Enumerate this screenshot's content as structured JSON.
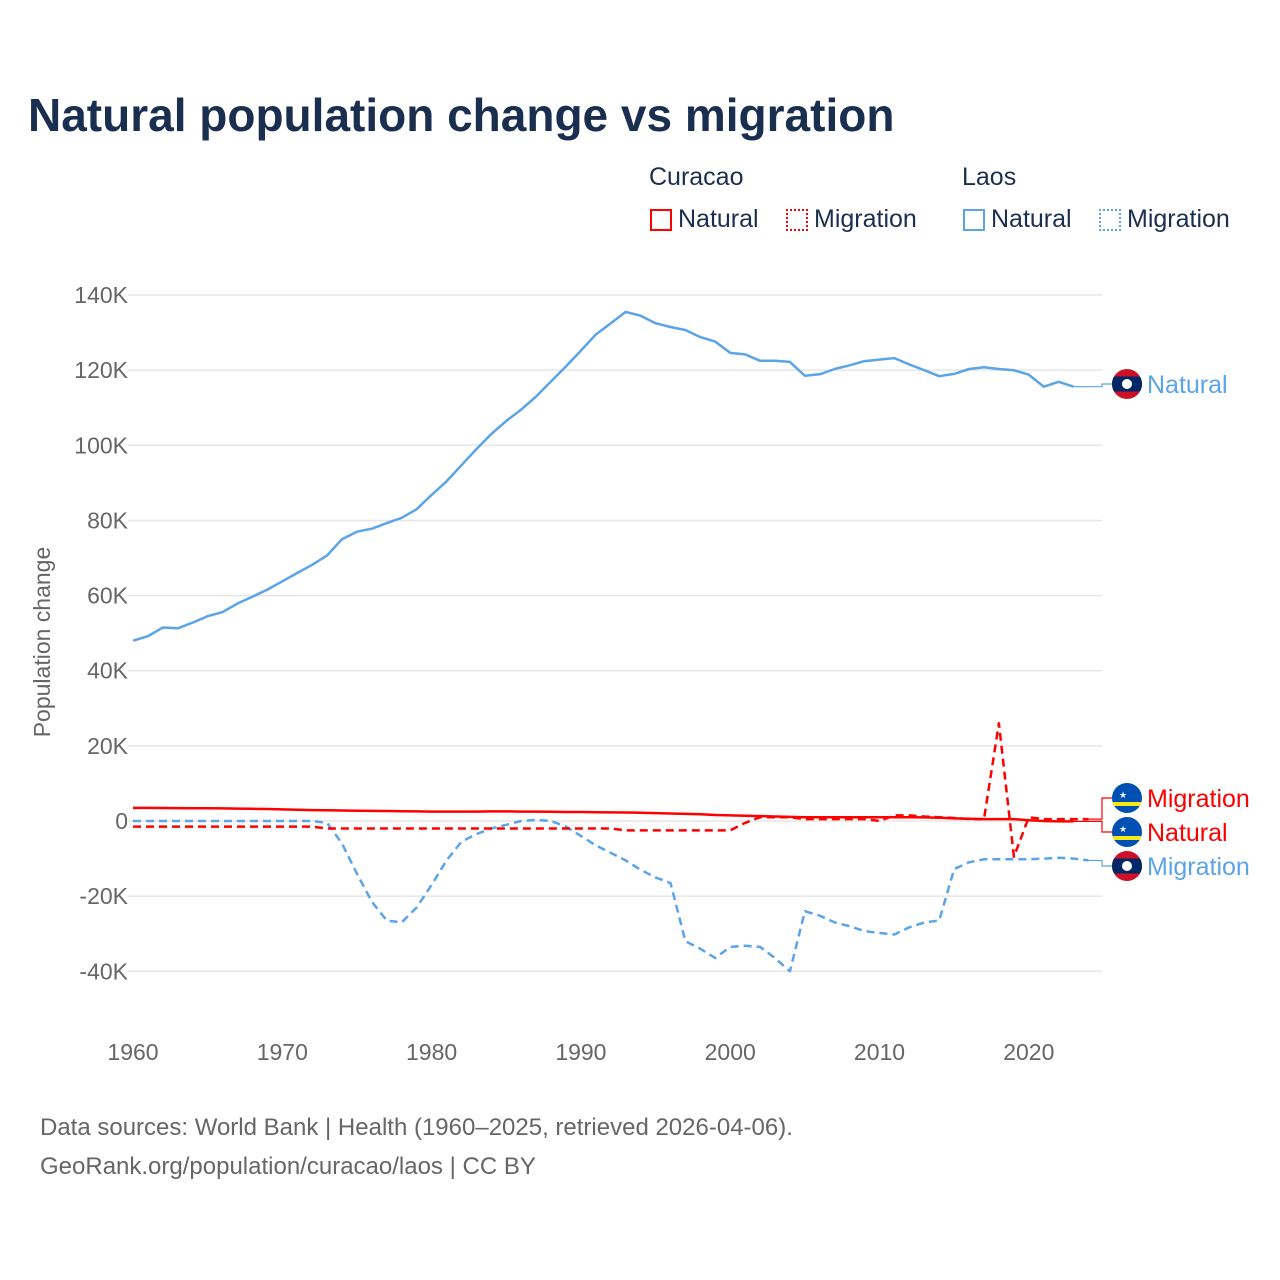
{
  "title": "Natural population change vs migration",
  "legend": {
    "groups": [
      {
        "name": "Curacao",
        "items": [
          "Natural",
          "Migration"
        ],
        "color": "#ff0000"
      },
      {
        "name": "Laos",
        "items": [
          "Natural",
          "Migration"
        ],
        "color": "#5ba4e8"
      }
    ]
  },
  "footer": {
    "line1": "Data sources: World Bank | Health (1960–2025, retrieved 2026-04-06).",
    "line2": "GeoRank.org/population/curacao/laos | CC BY"
  },
  "chart_data": {
    "type": "line",
    "title": "Natural population change vs migration",
    "xlabel": "",
    "ylabel": "Population change",
    "xlim": [
      1960,
      2025
    ],
    "ylim": [
      -50000,
      140000
    ],
    "yticks": [
      -40000,
      -20000,
      0,
      20000,
      40000,
      60000,
      80000,
      100000,
      120000,
      140000
    ],
    "ytick_labels": [
      "-40K",
      "-20K",
      "0",
      "20K",
      "40K",
      "60K",
      "80K",
      "100K",
      "120K",
      "140K"
    ],
    "xticks": [
      1960,
      1970,
      1980,
      1990,
      2000,
      2010,
      2020
    ],
    "xtick_labels": [
      "1960",
      "1970",
      "1980",
      "1990",
      "2000",
      "2010",
      "2020"
    ],
    "grid": true,
    "series": [
      {
        "name": "Laos Natural",
        "label": "Natural",
        "color": "#5ba4e8",
        "dash": false,
        "start": 1960,
        "values": [
          48000,
          49200,
          51500,
          51300,
          52800,
          54500,
          55600,
          57900,
          59700,
          61600,
          63800,
          66000,
          68200,
          70700,
          75000,
          77000,
          77800,
          79300,
          80700,
          83000,
          86800,
          90400,
          94700,
          99000,
          103000,
          106500,
          109500,
          113000,
          117000,
          121000,
          125200,
          129500,
          132500,
          135500,
          134500,
          132500,
          131500,
          130700,
          128800,
          127600,
          124600,
          124200,
          122500,
          122500,
          122200,
          118500,
          118900,
          120300,
          121300,
          122400,
          122800,
          123200,
          121500,
          120000,
          118400,
          119000,
          120300,
          120800,
          120300,
          120000,
          118800,
          115600,
          116900,
          115600
        ]
      },
      {
        "name": "Laos Migration",
        "label": "Migration",
        "color": "#5ba4e8",
        "dash": true,
        "start": 1960,
        "values": [
          0,
          0,
          0,
          0,
          0,
          0,
          0,
          0,
          0,
          0,
          0,
          0,
          0,
          -500,
          -6000,
          -14000,
          -21500,
          -26500,
          -27000,
          -23000,
          -17000,
          -10500,
          -5500,
          -3500,
          -2000,
          -1000,
          0,
          300,
          0,
          -1500,
          -4000,
          -6500,
          -8500,
          -10500,
          -13000,
          -15000,
          -16500,
          -32000,
          -34000,
          -36500,
          -33500,
          -33200,
          -33500,
          -36500,
          -40000,
          -24000,
          -25200,
          -27000,
          -28000,
          -29300,
          -29800,
          -30200,
          -28300,
          -27000,
          -26500,
          -12800,
          -11000,
          -10200,
          -10200,
          -10200,
          -10200,
          -10000,
          -9800,
          -10000,
          -10500
        ]
      },
      {
        "name": "Curacao Natural",
        "label": "Natural",
        "color": "#ff0000",
        "dash": false,
        "start": 1960,
        "values": [
          3500,
          3480,
          3460,
          3440,
          3420,
          3400,
          3350,
          3300,
          3250,
          3200,
          3100,
          3000,
          2900,
          2850,
          2800,
          2750,
          2700,
          2650,
          2600,
          2550,
          2500,
          2500,
          2500,
          2500,
          2550,
          2550,
          2500,
          2500,
          2450,
          2400,
          2400,
          2350,
          2300,
          2250,
          2200,
          2100,
          2000,
          1900,
          1800,
          1600,
          1500,
          1400,
          1300,
          1200,
          1100,
          1000,
          1000,
          1000,
          1000,
          1000,
          1000,
          1000,
          1000,
          950,
          850,
          700,
          600,
          500,
          500,
          500,
          200,
          0,
          -100,
          -100
        ]
      },
      {
        "name": "Curacao Migration",
        "label": "Migration",
        "color": "#ff0000",
        "dash": true,
        "start": 1960,
        "values": [
          -1500,
          -1500,
          -1500,
          -1500,
          -1500,
          -1500,
          -1500,
          -1500,
          -1500,
          -1500,
          -1500,
          -1500,
          -1500,
          -2000,
          -2000,
          -2000,
          -2000,
          -2000,
          -2000,
          -2000,
          -2000,
          -2000,
          -2000,
          -2000,
          -2000,
          -2000,
          -2000,
          -2000,
          -2000,
          -2000,
          -2000,
          -2000,
          -2000,
          -2500,
          -2500,
          -2500,
          -2500,
          -2500,
          -2500,
          -2500,
          -2500,
          -500,
          1000,
          1000,
          1000,
          500,
          500,
          500,
          500,
          500,
          0,
          1500,
          1500,
          1200,
          1000,
          800,
          500,
          500,
          26000,
          -9500,
          1000,
          500,
          500,
          500,
          500
        ]
      }
    ]
  }
}
